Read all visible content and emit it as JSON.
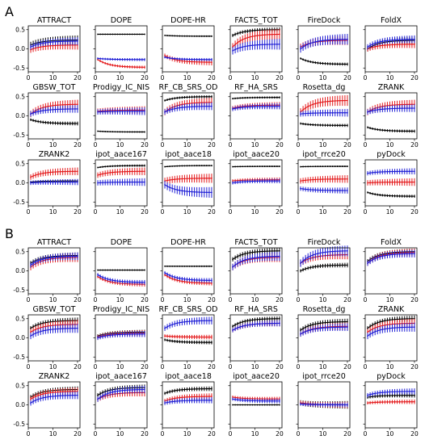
{
  "sections": [
    {
      "label": "A",
      "panels": [
        {
          "title": "ATTRACT",
          "series": [
            {
              "color": "#000000",
              "start": 0.1,
              "end": 0.23,
              "err": 0.12
            },
            {
              "color": "#e41a1c",
              "start": -0.02,
              "end": 0.1,
              "err": 0.12
            },
            {
              "color": "#1f1fd6",
              "start": 0.05,
              "end": 0.2,
              "err": 0.1
            }
          ]
        },
        {
          "title": "DOPE",
          "series": [
            {
              "color": "#000000",
              "start": 0.38,
              "end": 0.38,
              "err": 0.0
            },
            {
              "color": "#e41a1c",
              "start": -0.28,
              "end": -0.48,
              "err": 0.04
            },
            {
              "color": "#1f1fd6",
              "start": -0.25,
              "end": -0.28,
              "err": 0.04
            }
          ]
        },
        {
          "title": "DOPE-HR",
          "series": [
            {
              "color": "#000000",
              "start": 0.35,
              "end": 0.33,
              "err": 0.02
            },
            {
              "color": "#e41a1c",
              "start": -0.18,
              "end": -0.35,
              "err": 0.08
            },
            {
              "color": "#1f1fd6",
              "start": -0.22,
              "end": -0.28,
              "err": 0.04
            }
          ]
        },
        {
          "title": "FACTS_TOT",
          "series": [
            {
              "color": "#000000",
              "start": 0.35,
              "end": 0.5,
              "err": 0.06
            },
            {
              "color": "#e41a1c",
              "start": 0.05,
              "end": 0.38,
              "err": 0.14
            },
            {
              "color": "#1f1fd6",
              "start": -0.05,
              "end": 0.12,
              "err": 0.14
            }
          ]
        },
        {
          "title": "FireDock",
          "series": [
            {
              "color": "#000000",
              "start": -0.25,
              "end": -0.4,
              "err": 0.04
            },
            {
              "color": "#e41a1c",
              "start": 0.05,
              "end": 0.22,
              "err": 0.12
            },
            {
              "color": "#1f1fd6",
              "start": 0.0,
              "end": 0.25,
              "err": 0.14
            }
          ]
        },
        {
          "title": "FoldX",
          "series": [
            {
              "color": "#000000",
              "start": 0.0,
              "end": 0.22,
              "err": 0.1
            },
            {
              "color": "#e41a1c",
              "start": 0.0,
              "end": 0.12,
              "err": 0.1
            },
            {
              "color": "#1f1fd6",
              "start": 0.05,
              "end": 0.25,
              "err": 0.1
            }
          ]
        },
        {
          "title": "GBSW_TOT",
          "series": [
            {
              "color": "#000000",
              "start": -0.1,
              "end": -0.2,
              "err": 0.05
            },
            {
              "color": "#e41a1c",
              "start": 0.05,
              "end": 0.3,
              "err": 0.12
            },
            {
              "color": "#1f1fd6",
              "start": 0.05,
              "end": 0.18,
              "err": 0.1
            }
          ]
        },
        {
          "title": "Prodigy_IC_NIS",
          "series": [
            {
              "color": "#000000",
              "start": -0.4,
              "end": -0.42,
              "err": 0.02
            },
            {
              "color": "#e41a1c",
              "start": 0.12,
              "end": 0.15,
              "err": 0.1
            },
            {
              "color": "#1f1fd6",
              "start": 0.1,
              "end": 0.12,
              "err": 0.1
            }
          ]
        },
        {
          "title": "RF_CB_SRS_OD",
          "series": [
            {
              "color": "#000000",
              "start": 0.4,
              "end": 0.5,
              "err": 0.04
            },
            {
              "color": "#e41a1c",
              "start": 0.1,
              "end": 0.35,
              "err": 0.12
            },
            {
              "color": "#1f1fd6",
              "start": 0.1,
              "end": 0.25,
              "err": 0.1
            }
          ]
        },
        {
          "title": "RF_HA_SRS",
          "series": [
            {
              "color": "#000000",
              "start": 0.45,
              "end": 0.48,
              "err": 0.03
            },
            {
              "color": "#e41a1c",
              "start": 0.2,
              "end": 0.28,
              "err": 0.08
            },
            {
              "color": "#1f1fd6",
              "start": 0.18,
              "end": 0.25,
              "err": 0.08
            }
          ]
        },
        {
          "title": "Rosetta_dg",
          "series": [
            {
              "color": "#000000",
              "start": -0.2,
              "end": -0.25,
              "err": 0.04
            },
            {
              "color": "#e41a1c",
              "start": 0.1,
              "end": 0.4,
              "err": 0.14
            },
            {
              "color": "#1f1fd6",
              "start": 0.05,
              "end": 0.08,
              "err": 0.1
            }
          ]
        },
        {
          "title": "ZRANK",
          "series": [
            {
              "color": "#000000",
              "start": -0.3,
              "end": -0.4,
              "err": 0.04
            },
            {
              "color": "#e41a1c",
              "start": 0.1,
              "end": 0.3,
              "err": 0.12
            },
            {
              "color": "#1f1fd6",
              "start": 0.1,
              "end": 0.2,
              "err": 0.1
            }
          ]
        },
        {
          "title": "ZRANK2",
          "series": [
            {
              "color": "#000000",
              "start": 0.02,
              "end": 0.05,
              "err": 0.04
            },
            {
              "color": "#e41a1c",
              "start": 0.15,
              "end": 0.3,
              "err": 0.1
            },
            {
              "color": "#1f1fd6",
              "start": 0.0,
              "end": 0.02,
              "err": 0.08
            }
          ]
        },
        {
          "title": "ipot_aace167",
          "series": [
            {
              "color": "#000000",
              "start": 0.4,
              "end": 0.45,
              "err": 0.03
            },
            {
              "color": "#e41a1c",
              "start": 0.2,
              "end": 0.3,
              "err": 0.1
            },
            {
              "color": "#1f1fd6",
              "start": 0.0,
              "end": 0.02,
              "err": 0.1
            }
          ]
        },
        {
          "title": "ipot_aace18",
          "series": [
            {
              "color": "#000000",
              "start": 0.42,
              "end": 0.45,
              "err": 0.02
            },
            {
              "color": "#e41a1c",
              "start": 0.05,
              "end": 0.12,
              "err": 0.12
            },
            {
              "color": "#1f1fd6",
              "start": -0.05,
              "end": -0.25,
              "err": 0.14
            }
          ]
        },
        {
          "title": "ipot_aace20",
          "series": [
            {
              "color": "#000000",
              "start": 0.42,
              "end": 0.43,
              "err": 0.02
            },
            {
              "color": "#e41a1c",
              "start": 0.05,
              "end": 0.08,
              "err": 0.06
            },
            {
              "color": "#1f1fd6",
              "start": 0.0,
              "end": 0.05,
              "err": 0.06
            }
          ]
        },
        {
          "title": "ipot_rrce20",
          "series": [
            {
              "color": "#000000",
              "start": 0.42,
              "end": 0.43,
              "err": 0.02
            },
            {
              "color": "#e41a1c",
              "start": 0.05,
              "end": 0.1,
              "err": 0.1
            },
            {
              "color": "#1f1fd6",
              "start": -0.15,
              "end": -0.2,
              "err": 0.08
            }
          ]
        },
        {
          "title": "pyDock",
          "series": [
            {
              "color": "#000000",
              "start": -0.25,
              "end": -0.35,
              "err": 0.04
            },
            {
              "color": "#e41a1c",
              "start": 0.0,
              "end": 0.02,
              "err": 0.1
            },
            {
              "color": "#1f1fd6",
              "start": 0.25,
              "end": 0.3,
              "err": 0.08
            }
          ]
        }
      ]
    },
    {
      "label": "B",
      "panels": [
        {
          "title": "ATTRACT",
          "series": [
            {
              "color": "#000000",
              "start": 0.2,
              "end": 0.4,
              "err": 0.08
            },
            {
              "color": "#e41a1c",
              "start": 0.1,
              "end": 0.35,
              "err": 0.12
            },
            {
              "color": "#1f1fd6",
              "start": 0.15,
              "end": 0.38,
              "err": 0.1
            }
          ]
        },
        {
          "title": "DOPE",
          "series": [
            {
              "color": "#000000",
              "start": 0.02,
              "end": 0.02,
              "err": 0.02
            },
            {
              "color": "#e41a1c",
              "start": -0.15,
              "end": -0.35,
              "err": 0.06
            },
            {
              "color": "#1f1fd6",
              "start": -0.1,
              "end": -0.3,
              "err": 0.06
            }
          ]
        },
        {
          "title": "DOPE-HR",
          "series": [
            {
              "color": "#000000",
              "start": 0.12,
              "end": 0.12,
              "err": 0.02
            },
            {
              "color": "#e41a1c",
              "start": -0.1,
              "end": -0.32,
              "err": 0.06
            },
            {
              "color": "#1f1fd6",
              "start": -0.05,
              "end": -0.25,
              "err": 0.06
            }
          ]
        },
        {
          "title": "FACTS_TOT",
          "series": [
            {
              "color": "#000000",
              "start": 0.3,
              "end": 0.52,
              "err": 0.08
            },
            {
              "color": "#e41a1c",
              "start": 0.1,
              "end": 0.35,
              "err": 0.12
            },
            {
              "color": "#1f1fd6",
              "start": 0.1,
              "end": 0.38,
              "err": 0.12
            }
          ]
        },
        {
          "title": "FireDock",
          "series": [
            {
              "color": "#000000",
              "start": 0.0,
              "end": 0.15,
              "err": 0.06
            },
            {
              "color": "#e41a1c",
              "start": 0.2,
              "end": 0.42,
              "err": 0.12
            },
            {
              "color": "#1f1fd6",
              "start": 0.2,
              "end": 0.52,
              "err": 0.14
            }
          ]
        },
        {
          "title": "FoldX",
          "series": [
            {
              "color": "#000000",
              "start": 0.25,
              "end": 0.5,
              "err": 0.08
            },
            {
              "color": "#e41a1c",
              "start": 0.2,
              "end": 0.48,
              "err": 0.1
            },
            {
              "color": "#1f1fd6",
              "start": 0.2,
              "end": 0.45,
              "err": 0.1
            }
          ]
        },
        {
          "title": "GBSW_TOT",
          "series": [
            {
              "color": "#000000",
              "start": 0.25,
              "end": 0.45,
              "err": 0.08
            },
            {
              "color": "#e41a1c",
              "start": 0.15,
              "end": 0.35,
              "err": 0.12
            },
            {
              "color": "#1f1fd6",
              "start": 0.05,
              "end": 0.25,
              "err": 0.12
            }
          ]
        },
        {
          "title": "Prodigy_IC_NIS",
          "series": [
            {
              "color": "#000000",
              "start": 0.05,
              "end": 0.15,
              "err": 0.06
            },
            {
              "color": "#e41a1c",
              "start": 0.02,
              "end": 0.12,
              "err": 0.08
            },
            {
              "color": "#1f1fd6",
              "start": 0.0,
              "end": 0.1,
              "err": 0.08
            }
          ]
        },
        {
          "title": "RF_CB_SRS_OD",
          "series": [
            {
              "color": "#000000",
              "start": -0.05,
              "end": -0.12,
              "err": 0.05
            },
            {
              "color": "#e41a1c",
              "start": 0.05,
              "end": 0.02,
              "err": 0.06
            },
            {
              "color": "#1f1fd6",
              "start": 0.25,
              "end": 0.45,
              "err": 0.1
            }
          ]
        },
        {
          "title": "RF_HA_SRS",
          "series": [
            {
              "color": "#000000",
              "start": 0.3,
              "end": 0.5,
              "err": 0.06
            },
            {
              "color": "#e41a1c",
              "start": 0.2,
              "end": 0.38,
              "err": 0.08
            },
            {
              "color": "#1f1fd6",
              "start": 0.2,
              "end": 0.38,
              "err": 0.08
            }
          ]
        },
        {
          "title": "Rosetta_dg",
          "series": [
            {
              "color": "#000000",
              "start": 0.2,
              "end": 0.42,
              "err": 0.08
            },
            {
              "color": "#e41a1c",
              "start": 0.1,
              "end": 0.3,
              "err": 0.1
            },
            {
              "color": "#1f1fd6",
              "start": 0.1,
              "end": 0.28,
              "err": 0.1
            }
          ]
        },
        {
          "title": "ZRANK",
          "series": [
            {
              "color": "#000000",
              "start": 0.25,
              "end": 0.5,
              "err": 0.08
            },
            {
              "color": "#e41a1c",
              "start": 0.15,
              "end": 0.38,
              "err": 0.12
            },
            {
              "color": "#1f1fd6",
              "start": 0.05,
              "end": 0.28,
              "err": 0.12
            }
          ]
        },
        {
          "title": "ZRANK2",
          "series": [
            {
              "color": "#000000",
              "start": 0.2,
              "end": 0.4,
              "err": 0.08
            },
            {
              "color": "#e41a1c",
              "start": 0.15,
              "end": 0.35,
              "err": 0.1
            },
            {
              "color": "#1f1fd6",
              "start": 0.05,
              "end": 0.25,
              "err": 0.1
            }
          ]
        },
        {
          "title": "ipot_aace167",
          "series": [
            {
              "color": "#000000",
              "start": 0.25,
              "end": 0.45,
              "err": 0.08
            },
            {
              "color": "#e41a1c",
              "start": 0.15,
              "end": 0.32,
              "err": 0.1
            },
            {
              "color": "#1f1fd6",
              "start": 0.15,
              "end": 0.4,
              "err": 0.1
            }
          ]
        },
        {
          "title": "ipot_aace18",
          "series": [
            {
              "color": "#000000",
              "start": 0.3,
              "end": 0.42,
              "err": 0.06
            },
            {
              "color": "#e41a1c",
              "start": 0.1,
              "end": 0.22,
              "err": 0.08
            },
            {
              "color": "#1f1fd6",
              "start": 0.05,
              "end": 0.12,
              "err": 0.08
            }
          ]
        },
        {
          "title": "ipot_aace20",
          "series": [
            {
              "color": "#000000",
              "start": 0.0,
              "end": 0.0,
              "err": 0.02
            },
            {
              "color": "#e41a1c",
              "start": 0.2,
              "end": 0.15,
              "err": 0.06
            },
            {
              "color": "#1f1fd6",
              "start": 0.15,
              "end": 0.1,
              "err": 0.06
            }
          ]
        },
        {
          "title": "ipot_rrce20",
          "series": [
            {
              "color": "#000000",
              "start": 0.05,
              "end": 0.0,
              "err": 0.1
            },
            {
              "color": "#e41a1c",
              "start": 0.05,
              "end": 0.0,
              "err": 0.08
            },
            {
              "color": "#1f1fd6",
              "start": 0.02,
              "end": 0.0,
              "err": 0.06
            }
          ]
        },
        {
          "title": "pyDock",
          "series": [
            {
              "color": "#000000",
              "start": 0.2,
              "end": 0.25,
              "err": 0.06
            },
            {
              "color": "#e41a1c",
              "start": 0.05,
              "end": 0.08,
              "err": 0.06
            },
            {
              "color": "#1f1fd6",
              "start": 0.25,
              "end": 0.35,
              "err": 0.08
            }
          ]
        }
      ]
    }
  ],
  "chart_data": {
    "type": "line",
    "x": [
      1,
      2,
      3,
      4,
      5,
      6,
      7,
      8,
      9,
      10,
      11,
      12,
      13,
      14,
      15,
      16,
      17,
      18,
      19,
      20
    ],
    "xlim": [
      0,
      21
    ],
    "ylim": [
      -0.6,
      0.6
    ],
    "xticks": [
      0,
      10,
      20
    ],
    "yticks": [
      -0.5,
      0.0,
      0.5
    ],
    "grid": false,
    "error_bars": true
  }
}
